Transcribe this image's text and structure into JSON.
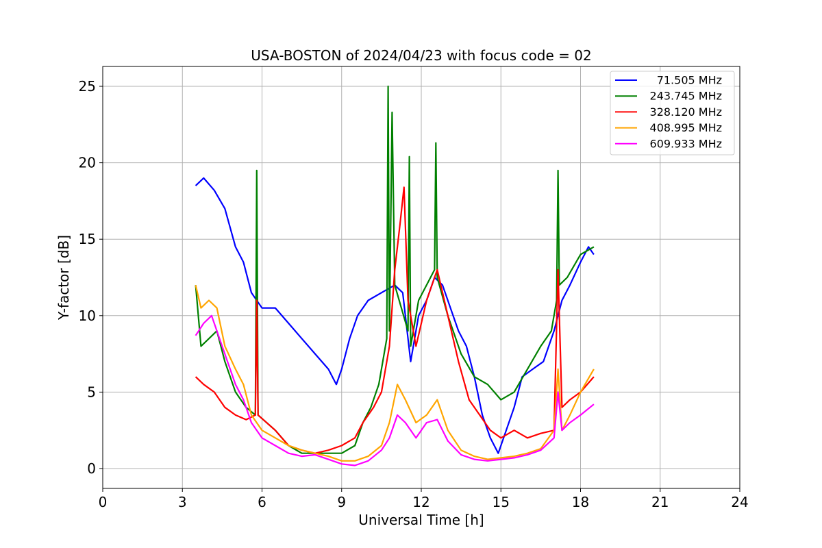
{
  "chart_data": {
    "type": "line",
    "title": "USA-BOSTON of 2024/04/23 with focus code = 02",
    "xlabel": "Universal Time [h]",
    "ylabel": "Y-factor [dB]",
    "xlim": [
      0,
      24
    ],
    "ylim": [
      -1.3,
      26.3
    ],
    "xticks": [
      0,
      3,
      6,
      9,
      12,
      15,
      18,
      21,
      24
    ],
    "yticks": [
      0,
      5,
      10,
      15,
      20,
      25
    ],
    "grid": true,
    "legend_position": "top-right",
    "series": [
      {
        "name": "71.505 MHz",
        "color": "#0000ff",
        "points": [
          [
            3.5,
            18.5
          ],
          [
            3.8,
            19.0
          ],
          [
            4.2,
            18.2
          ],
          [
            4.6,
            17.0
          ],
          [
            5.0,
            14.5
          ],
          [
            5.3,
            13.5
          ],
          [
            5.6,
            11.5
          ],
          [
            6.0,
            10.5
          ],
          [
            6.5,
            10.5
          ],
          [
            7.0,
            9.5
          ],
          [
            7.5,
            8.5
          ],
          [
            8.0,
            7.5
          ],
          [
            8.5,
            6.5
          ],
          [
            8.8,
            5.5
          ],
          [
            9.0,
            6.5
          ],
          [
            9.3,
            8.5
          ],
          [
            9.6,
            10.0
          ],
          [
            10.0,
            11.0
          ],
          [
            10.5,
            11.5
          ],
          [
            11.0,
            12.0
          ],
          [
            11.3,
            11.5
          ],
          [
            11.6,
            7.0
          ],
          [
            11.9,
            10.0
          ],
          [
            12.2,
            11.0
          ],
          [
            12.5,
            12.5
          ],
          [
            12.8,
            12.0
          ],
          [
            13.1,
            10.5
          ],
          [
            13.4,
            9.0
          ],
          [
            13.7,
            8.0
          ],
          [
            14.0,
            6.0
          ],
          [
            14.3,
            3.5
          ],
          [
            14.6,
            2.0
          ],
          [
            14.9,
            1.0
          ],
          [
            15.2,
            2.5
          ],
          [
            15.5,
            4.0
          ],
          [
            15.8,
            6.0
          ],
          [
            16.2,
            6.5
          ],
          [
            16.6,
            7.0
          ],
          [
            17.0,
            9.0
          ],
          [
            17.3,
            11.0
          ],
          [
            17.6,
            12.0
          ],
          [
            18.0,
            13.5
          ],
          [
            18.3,
            14.5
          ],
          [
            18.5,
            14.0
          ]
        ]
      },
      {
        "name": "243.745 MHz",
        "color": "#008000",
        "points": [
          [
            3.5,
            12.0
          ],
          [
            3.7,
            8.0
          ],
          [
            4.0,
            8.5
          ],
          [
            4.3,
            9.0
          ],
          [
            4.6,
            7.0
          ],
          [
            5.0,
            5.0
          ],
          [
            5.4,
            4.0
          ],
          [
            5.75,
            3.5
          ],
          [
            5.8,
            19.5
          ],
          [
            5.85,
            3.5
          ],
          [
            6.5,
            2.5
          ],
          [
            7.0,
            1.5
          ],
          [
            7.5,
            1.0
          ],
          [
            8.0,
            1.0
          ],
          [
            8.5,
            1.0
          ],
          [
            9.0,
            1.0
          ],
          [
            9.5,
            1.5
          ],
          [
            9.8,
            3.0
          ],
          [
            10.1,
            4.0
          ],
          [
            10.4,
            5.5
          ],
          [
            10.7,
            8.5
          ],
          [
            10.75,
            25.0
          ],
          [
            10.8,
            9.0
          ],
          [
            10.9,
            23.3
          ],
          [
            11.0,
            12.0
          ],
          [
            11.5,
            9.0
          ],
          [
            11.55,
            20.4
          ],
          [
            11.6,
            8.0
          ],
          [
            11.9,
            11.0
          ],
          [
            12.5,
            13.0
          ],
          [
            12.55,
            21.3
          ],
          [
            12.6,
            12.5
          ],
          [
            13.0,
            10.0
          ],
          [
            13.5,
            7.5
          ],
          [
            14.0,
            6.0
          ],
          [
            14.5,
            5.5
          ],
          [
            15.0,
            4.5
          ],
          [
            15.5,
            5.0
          ],
          [
            16.0,
            6.5
          ],
          [
            16.5,
            8.0
          ],
          [
            16.9,
            9.0
          ],
          [
            17.1,
            11.0
          ],
          [
            17.15,
            19.5
          ],
          [
            17.2,
            12.0
          ],
          [
            17.5,
            12.5
          ],
          [
            18.0,
            14.0
          ],
          [
            18.5,
            14.5
          ]
        ]
      },
      {
        "name": "328.120 MHz",
        "color": "#ff0000",
        "points": [
          [
            3.5,
            6.0
          ],
          [
            3.8,
            5.5
          ],
          [
            4.2,
            5.0
          ],
          [
            4.6,
            4.0
          ],
          [
            5.0,
            3.5
          ],
          [
            5.4,
            3.2
          ],
          [
            5.75,
            3.5
          ],
          [
            5.8,
            11.0
          ],
          [
            5.85,
            3.5
          ],
          [
            6.5,
            2.5
          ],
          [
            7.0,
            1.5
          ],
          [
            7.5,
            1.2
          ],
          [
            8.0,
            1.0
          ],
          [
            8.5,
            1.2
          ],
          [
            9.0,
            1.5
          ],
          [
            9.5,
            2.0
          ],
          [
            9.8,
            3.0
          ],
          [
            10.2,
            4.0
          ],
          [
            10.5,
            5.0
          ],
          [
            10.8,
            8.0
          ],
          [
            11.0,
            13.0
          ],
          [
            11.2,
            16.0
          ],
          [
            11.35,
            18.4
          ],
          [
            11.5,
            11.0
          ],
          [
            11.8,
            8.0
          ],
          [
            12.2,
            11.0
          ],
          [
            12.6,
            13.0
          ],
          [
            13.0,
            10.0
          ],
          [
            13.4,
            7.0
          ],
          [
            13.8,
            4.5
          ],
          [
            14.2,
            3.5
          ],
          [
            14.6,
            2.5
          ],
          [
            15.0,
            2.0
          ],
          [
            15.5,
            2.5
          ],
          [
            16.0,
            2.0
          ],
          [
            16.5,
            2.3
          ],
          [
            17.0,
            2.5
          ],
          [
            17.15,
            13.0
          ],
          [
            17.3,
            4.0
          ],
          [
            17.6,
            4.5
          ],
          [
            18.0,
            5.0
          ],
          [
            18.5,
            6.0
          ]
        ]
      },
      {
        "name": "408.995 MHz",
        "color": "#ffa500",
        "points": [
          [
            3.5,
            12.0
          ],
          [
            3.7,
            10.5
          ],
          [
            4.0,
            11.0
          ],
          [
            4.3,
            10.5
          ],
          [
            4.6,
            8.0
          ],
          [
            5.0,
            6.5
          ],
          [
            5.3,
            5.5
          ],
          [
            5.6,
            3.5
          ],
          [
            6.0,
            2.5
          ],
          [
            6.5,
            2.0
          ],
          [
            7.0,
            1.5
          ],
          [
            7.5,
            1.2
          ],
          [
            8.0,
            1.0
          ],
          [
            8.5,
            0.8
          ],
          [
            9.0,
            0.5
          ],
          [
            9.5,
            0.5
          ],
          [
            10.0,
            0.8
          ],
          [
            10.5,
            1.5
          ],
          [
            10.8,
            3.0
          ],
          [
            11.1,
            5.5
          ],
          [
            11.4,
            4.5
          ],
          [
            11.8,
            3.0
          ],
          [
            12.2,
            3.5
          ],
          [
            12.6,
            4.5
          ],
          [
            13.0,
            2.5
          ],
          [
            13.5,
            1.2
          ],
          [
            14.0,
            0.8
          ],
          [
            14.5,
            0.6
          ],
          [
            15.0,
            0.7
          ],
          [
            15.5,
            0.8
          ],
          [
            16.0,
            1.0
          ],
          [
            16.5,
            1.3
          ],
          [
            17.0,
            2.5
          ],
          [
            17.15,
            6.5
          ],
          [
            17.3,
            2.5
          ],
          [
            17.6,
            3.5
          ],
          [
            18.0,
            5.0
          ],
          [
            18.5,
            6.5
          ]
        ]
      },
      {
        "name": "609.933 MHz",
        "color": "#ff00ff",
        "points": [
          [
            3.5,
            8.7
          ],
          [
            3.8,
            9.5
          ],
          [
            4.1,
            10.0
          ],
          [
            4.4,
            8.5
          ],
          [
            4.7,
            7.0
          ],
          [
            5.0,
            5.5
          ],
          [
            5.3,
            4.5
          ],
          [
            5.6,
            3.0
          ],
          [
            6.0,
            2.0
          ],
          [
            6.5,
            1.5
          ],
          [
            7.0,
            1.0
          ],
          [
            7.5,
            0.8
          ],
          [
            8.0,
            0.9
          ],
          [
            8.5,
            0.6
          ],
          [
            9.0,
            0.3
          ],
          [
            9.5,
            0.2
          ],
          [
            10.0,
            0.5
          ],
          [
            10.5,
            1.2
          ],
          [
            10.8,
            2.0
          ],
          [
            11.1,
            3.5
          ],
          [
            11.4,
            3.0
          ],
          [
            11.8,
            2.0
          ],
          [
            12.2,
            3.0
          ],
          [
            12.6,
            3.2
          ],
          [
            13.0,
            1.8
          ],
          [
            13.5,
            0.9
          ],
          [
            14.0,
            0.6
          ],
          [
            14.5,
            0.5
          ],
          [
            15.0,
            0.6
          ],
          [
            15.5,
            0.7
          ],
          [
            16.0,
            0.9
          ],
          [
            16.5,
            1.2
          ],
          [
            17.0,
            2.0
          ],
          [
            17.15,
            5.0
          ],
          [
            17.3,
            2.5
          ],
          [
            17.6,
            3.0
          ],
          [
            18.0,
            3.5
          ],
          [
            18.5,
            4.2
          ]
        ]
      }
    ]
  }
}
